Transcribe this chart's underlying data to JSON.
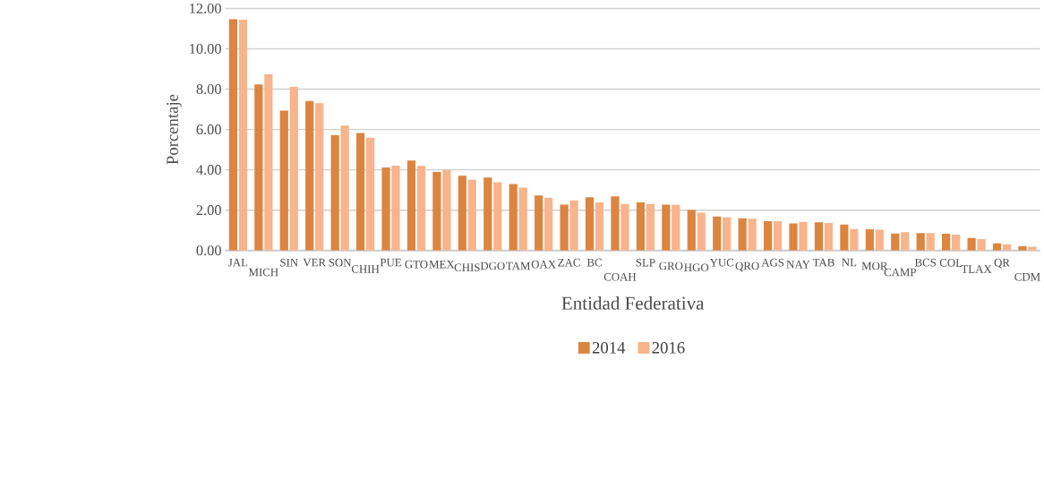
{
  "chart_data": {
    "type": "bar",
    "xlabel": "Entidad Federativa",
    "ylabel": "Porcentaje",
    "categories": [
      "JAL",
      "MICH",
      "SIN",
      "VER",
      "SON",
      "CHIH",
      "PUE",
      "GTO",
      "MEX",
      "CHIS",
      "DGO",
      "TAM",
      "OAX",
      "ZAC",
      "BC",
      "COAH",
      "SLP",
      "GRO",
      "HGO",
      "YUC",
      "QRO",
      "AGS",
      "NAY",
      "TAB",
      "NL",
      "MOR",
      "CAMP",
      "BCS",
      "COL",
      "TLAX",
      "QR",
      "CDM"
    ],
    "series": [
      {
        "name": "2014",
        "color": "#dc8540",
        "values": [
          11.48,
          8.23,
          6.94,
          7.41,
          5.72,
          5.83,
          4.12,
          4.46,
          3.9,
          3.71,
          3.62,
          3.3,
          2.73,
          2.27,
          2.64,
          2.69,
          2.39,
          2.27,
          2.01,
          1.69,
          1.6,
          1.45,
          1.34,
          1.4,
          1.29,
          1.05,
          0.84,
          0.87,
          0.83,
          0.62,
          0.35,
          0.21
        ]
      },
      {
        "name": "2016",
        "color": "#f8b48c",
        "values": [
          11.44,
          8.74,
          8.11,
          7.3,
          6.19,
          5.59,
          4.21,
          4.2,
          3.99,
          3.51,
          3.39,
          3.12,
          2.61,
          2.49,
          2.38,
          2.31,
          2.31,
          2.26,
          1.87,
          1.64,
          1.57,
          1.45,
          1.42,
          1.36,
          1.06,
          1.03,
          0.91,
          0.86,
          0.79,
          0.56,
          0.31,
          0.19
        ]
      }
    ],
    "ylim": [
      0,
      12
    ],
    "yticks": [
      {
        "value": 0,
        "label": "0.00"
      },
      {
        "value": 2,
        "label": "2.00"
      },
      {
        "value": 4,
        "label": "4.00"
      },
      {
        "value": 6,
        "label": "6.00"
      },
      {
        "value": 8,
        "label": "8.00"
      },
      {
        "value": 10,
        "label": "10.00"
      },
      {
        "value": 12,
        "label": "12.00"
      }
    ],
    "grid": "y",
    "legend": "bottom"
  }
}
